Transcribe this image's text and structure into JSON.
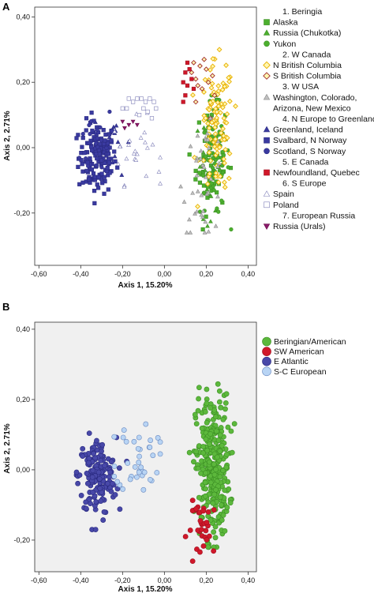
{
  "chart_data": [
    {
      "panel": "A",
      "type": "scatter",
      "xlabel": "Axis 1, 15.20%",
      "ylabel": "Axis 2, 2.71%",
      "xlim": [
        -0.62,
        0.44
      ],
      "ylim": [
        -0.36,
        0.43
      ],
      "xticks": [
        -0.6,
        -0.4,
        -0.2,
        0.0,
        0.2,
        0.4
      ],
      "yticks": [
        -0.2,
        0.0,
        0.2,
        0.4
      ],
      "xtick_labels": [
        "-0,60",
        "-0,40",
        "-0,20",
        "0,00",
        "0,20",
        "0,40"
      ],
      "ytick_labels": [
        "-0,20",
        "0,00",
        "0,20",
        "0,40"
      ],
      "background": "#ffffff",
      "legend_position": "right",
      "legend": [
        {
          "kind": "header",
          "label": "1. Beringia"
        },
        {
          "kind": "series",
          "label": "Alaska",
          "key": "alaska"
        },
        {
          "kind": "series",
          "label": "Russia (Chukotka)",
          "key": "chukotka"
        },
        {
          "kind": "series",
          "label": "Yukon",
          "key": "yukon"
        },
        {
          "kind": "header",
          "label": "2. W Canada"
        },
        {
          "kind": "series",
          "label": "N British Columbia",
          "key": "nbc"
        },
        {
          "kind": "series",
          "label": "S British Columbia",
          "key": "sbc"
        },
        {
          "kind": "header",
          "label": "3. W USA"
        },
        {
          "kind": "series",
          "label": "Washington, Colorado,",
          "key": "wusa"
        },
        {
          "kind": "text",
          "label": "Arizona, New Mexico"
        },
        {
          "kind": "header",
          "label": "4. N Europe to Greenland"
        },
        {
          "kind": "series",
          "label": "Greenland, Iceland",
          "key": "greenland"
        },
        {
          "kind": "series",
          "label": "Svalbard,  N Norway",
          "key": "svalbard"
        },
        {
          "kind": "series",
          "label": "Scotland, S Norway",
          "key": "scotland"
        },
        {
          "kind": "header",
          "label": "5. E Canada"
        },
        {
          "kind": "series",
          "label": "Newfoundland, Quebec",
          "key": "newfoundland"
        },
        {
          "kind": "header",
          "label": "6. S Europe"
        },
        {
          "kind": "series",
          "label": "Spain",
          "key": "spain"
        },
        {
          "kind": "series",
          "label": "Poland",
          "key": "poland"
        },
        {
          "kind": "header",
          "label": "7. European Russia"
        },
        {
          "kind": "series",
          "label": "Russia (Urals)",
          "key": "urals"
        }
      ],
      "series": [
        {
          "key": "alaska",
          "marker": "square",
          "color": "#4caf2e",
          "stroke": "#3c8f24",
          "values": []
        },
        {
          "key": "chukotka",
          "marker": "triangle",
          "color": "#4caf2e",
          "stroke": "#3c8f24",
          "values": []
        },
        {
          "key": "yukon",
          "marker": "circle",
          "color": "#4caf2e",
          "stroke": "#3c8f24",
          "values": []
        },
        {
          "key": "nbc",
          "marker": "diamond",
          "color": "#fff7b0",
          "stroke": "#e8b000",
          "values": []
        },
        {
          "key": "sbc",
          "marker": "diamond",
          "color": "#fff7b0",
          "stroke": "#a02a2a",
          "values": []
        },
        {
          "key": "wusa",
          "marker": "triangle",
          "color": "#c0c0c0",
          "stroke": "#8a8a8a",
          "values": []
        },
        {
          "key": "greenland",
          "marker": "triangle",
          "color": "#3a3aa0",
          "stroke": "#2a2a80",
          "values": []
        },
        {
          "key": "svalbard",
          "marker": "square",
          "color": "#3a3aa0",
          "stroke": "#2a2a80",
          "values": []
        },
        {
          "key": "scotland",
          "marker": "circle",
          "color": "#3a3aa0",
          "stroke": "#2a2a80",
          "values": []
        },
        {
          "key": "newfoundland",
          "marker": "square",
          "color": "#d0182a",
          "stroke": "#a01020",
          "values": []
        },
        {
          "key": "spain",
          "marker": "triangle",
          "color": "#ffffff",
          "stroke": "#8080b8",
          "values": []
        },
        {
          "key": "poland",
          "marker": "square",
          "color": "#ffffff",
          "stroke": "#8080b8",
          "values": []
        },
        {
          "key": "urals",
          "marker": "triangle-down",
          "color": "#8a1a6a",
          "stroke": "#6a0a4a",
          "values": []
        }
      ]
    },
    {
      "panel": "B",
      "type": "scatter",
      "xlabel": "Axis 1, 15.20%",
      "ylabel": "Axis 2, 2.71%",
      "xlim": [
        -0.62,
        0.44
      ],
      "ylim": [
        -0.29,
        0.42
      ],
      "xticks": [
        -0.6,
        -0.4,
        -0.2,
        0.0,
        0.2,
        0.4
      ],
      "yticks": [
        -0.2,
        0.0,
        0.2,
        0.4
      ],
      "xtick_labels": [
        "-0,60",
        "-0,40",
        "-0,20",
        "0,00",
        "0,20",
        "0,40"
      ],
      "ytick_labels": [
        "-0,20",
        "0,00",
        "0,20",
        "0,40"
      ],
      "background": "#f0f0f0",
      "legend_position": "top-right",
      "legend": [
        {
          "kind": "series",
          "label": "Beringian/American",
          "key": "beringian"
        },
        {
          "kind": "series",
          "label": "SW American",
          "key": "swamerican"
        },
        {
          "kind": "series",
          "label": "E Atlantic",
          "key": "eatlantic"
        },
        {
          "kind": "series",
          "label": "S-C European",
          "key": "sceuropean"
        }
      ],
      "series": [
        {
          "key": "beringian",
          "marker": "circle",
          "color": "#5cb83c",
          "stroke": "#3c8f24",
          "values": []
        },
        {
          "key": "swamerican",
          "marker": "circle",
          "color": "#d0182a",
          "stroke": "#a01020",
          "values": []
        },
        {
          "key": "eatlantic",
          "marker": "circle",
          "color": "#4848a8",
          "stroke": "#2a2a80",
          "values": []
        },
        {
          "key": "sceuropean",
          "marker": "circle",
          "color": "#b8d4f4",
          "stroke": "#6a8ac0",
          "values": []
        }
      ]
    }
  ]
}
